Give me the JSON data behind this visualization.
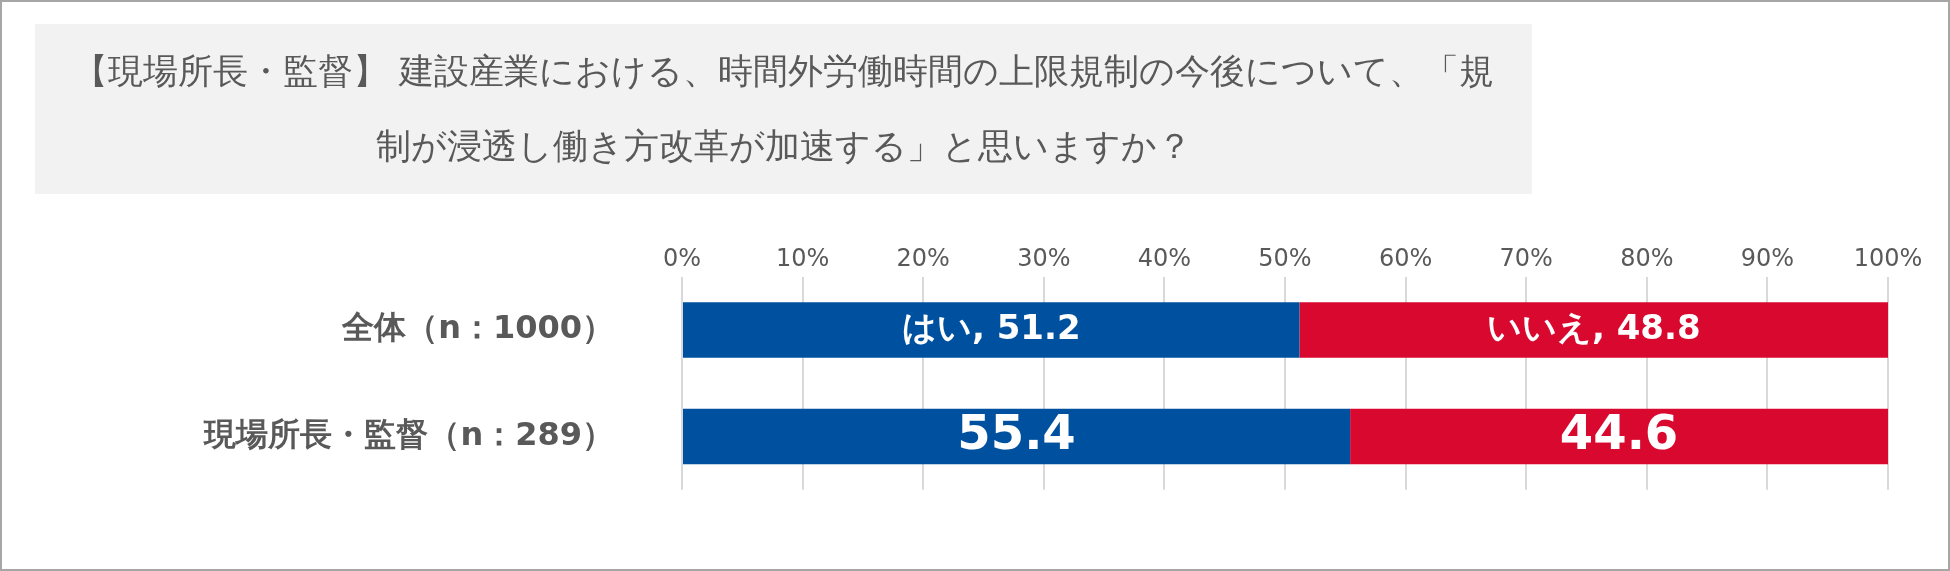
{
  "chart_data": {
    "type": "bar",
    "orientation": "horizontal",
    "stacked": true,
    "title": "【現場所長・監督】 建設産業における、時間外労働時間の上限規制の今後について、「規制が浸透し働き方改革が加速する」と思いますか？",
    "categories": [
      "全体（n：1000）",
      "現場所長・監督（n：289）"
    ],
    "series": [
      {
        "color": "#0050a0",
        "values": [
          51.2,
          55.4
        ],
        "value_labels": [
          "はい, 51.2",
          "55.4"
        ]
      },
      {
        "color": "#d9082e",
        "values": [
          48.8,
          44.6
        ],
        "value_labels": [
          "いいえ, 48.8",
          "44.6"
        ]
      }
    ],
    "xlim": [
      0,
      100
    ],
    "xticks": [
      {
        "value": 0,
        "label": "0%"
      },
      {
        "value": 10,
        "label": "10%"
      },
      {
        "value": 20,
        "label": "20%"
      },
      {
        "value": 30,
        "label": "30%"
      },
      {
        "value": 40,
        "label": "40%"
      },
      {
        "value": 50,
        "label": "50%"
      },
      {
        "value": 60,
        "label": "60%"
      },
      {
        "value": 70,
        "label": "70%"
      },
      {
        "value": 80,
        "label": "80%"
      },
      {
        "value": 90,
        "label": "90%"
      },
      {
        "value": 100,
        "label": "100%"
      }
    ],
    "grid": "x",
    "legend": false
  }
}
